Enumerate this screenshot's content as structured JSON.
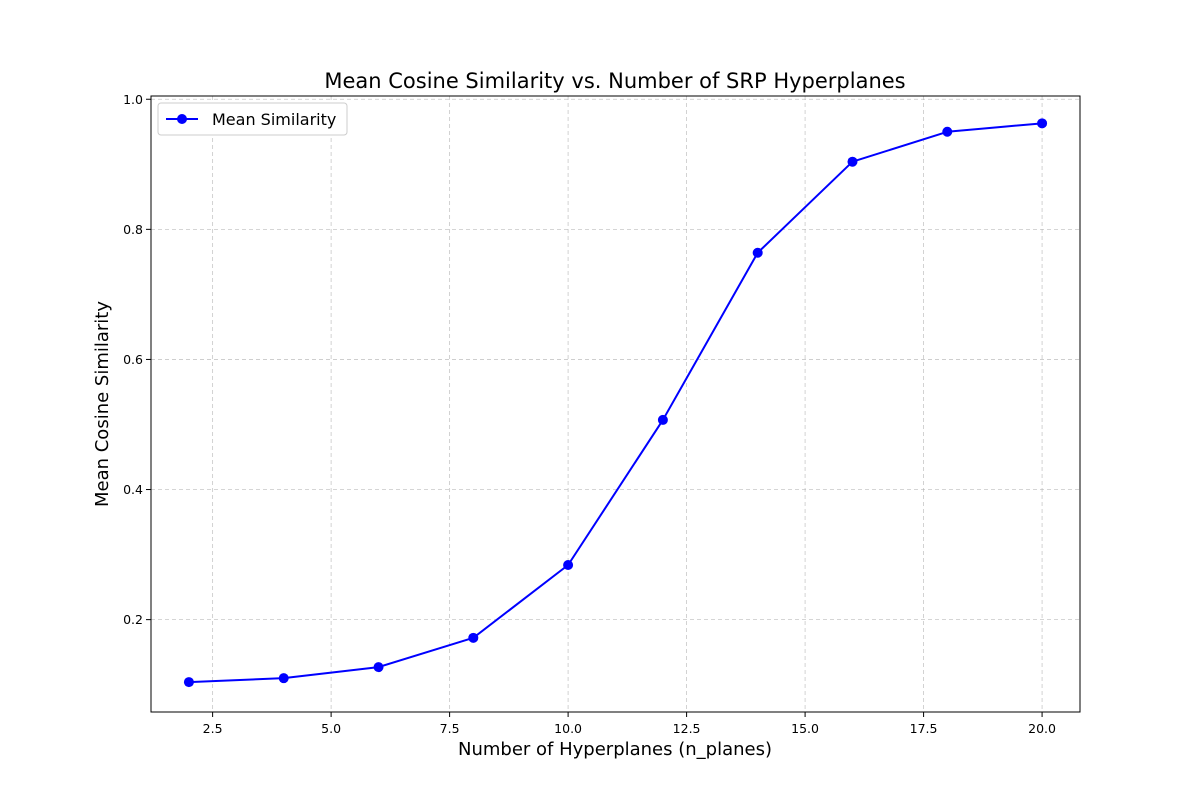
{
  "chart_data": {
    "type": "line",
    "title": "Mean Cosine Similarity vs. Number of SRP Hyperplanes",
    "xlabel": "Number of Hyperplanes (n_planes)",
    "ylabel": "Mean Cosine Similarity",
    "xlim": [
      1.2,
      20.8
    ],
    "ylim": [
      0.058,
      1.005
    ],
    "xticks": [
      2.5,
      5.0,
      7.5,
      10.0,
      12.5,
      15.0,
      17.5,
      20.0
    ],
    "xtick_labels": [
      "2.5",
      "5.0",
      "7.5",
      "10.0",
      "12.5",
      "15.0",
      "17.5",
      "20.0"
    ],
    "yticks": [
      0.2,
      0.4,
      0.6,
      0.8,
      1.0
    ],
    "ytick_labels": [
      "0.2",
      "0.4",
      "0.6",
      "0.8",
      "1.0"
    ],
    "grid": true,
    "legend_position": "top-left",
    "series": [
      {
        "name": "Mean Similarity",
        "color": "#0000ff",
        "marker": "circle",
        "x": [
          2,
          4,
          6,
          8,
          10,
          12,
          14,
          16,
          18,
          20
        ],
        "y": [
          0.104,
          0.11,
          0.127,
          0.172,
          0.284,
          0.507,
          0.764,
          0.904,
          0.95,
          0.963
        ]
      }
    ]
  }
}
